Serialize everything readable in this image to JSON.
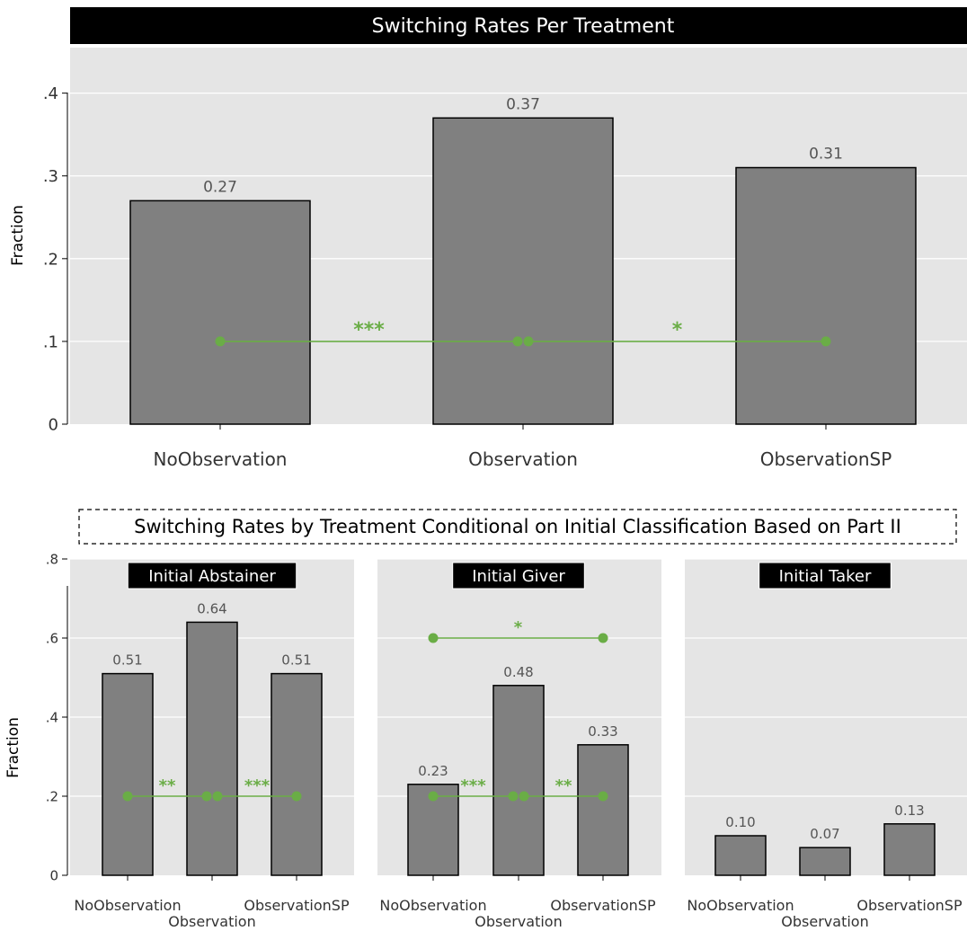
{
  "main_title": "Switching Rates Per Treatment",
  "sub_title": "Switching Rates by Treatment Conditional on Initial Classification Based on Part II",
  "colors": {
    "bar": "#808080",
    "significance": "#6aad46",
    "panel": "#e5e5e5",
    "title_bg": "#000000"
  },
  "chart_data": [
    {
      "type": "bar",
      "title": "Switching Rates Per Treatment",
      "ylabel": "Fraction",
      "ylim": [
        0,
        0.45
      ],
      "yticks": [
        0,
        0.1,
        0.2,
        0.3,
        0.4
      ],
      "ytick_labels": [
        "0",
        ".1",
        ".2",
        ".3",
        ".4"
      ],
      "categories": [
        "NoObservation",
        "Observation",
        "ObservationSP"
      ],
      "values": [
        0.27,
        0.37,
        0.31
      ],
      "value_labels": [
        "0.27",
        "0.37",
        "0.31"
      ],
      "significance": [
        {
          "from": 0,
          "to": 1,
          "y": 0.1,
          "label": "***"
        },
        {
          "from": 1,
          "to": 2,
          "y": 0.1,
          "label": "*"
        }
      ]
    },
    {
      "type": "bar",
      "title": "Initial Abstainer",
      "ylabel": "Fraction",
      "ylim": [
        0,
        0.8
      ],
      "yticks": [
        0,
        0.2,
        0.4,
        0.6,
        0.8
      ],
      "ytick_labels": [
        "0",
        ".2",
        ".4",
        ".6",
        ".8"
      ],
      "categories": [
        "NoObservation",
        "Observation",
        "ObservationSP"
      ],
      "values": [
        0.51,
        0.64,
        0.51
      ],
      "value_labels": [
        "0.51",
        "0.64",
        "0.51"
      ],
      "significance": [
        {
          "from": 0,
          "to": 1,
          "y": 0.2,
          "label": "**"
        },
        {
          "from": 1,
          "to": 2,
          "y": 0.2,
          "label": "***"
        }
      ]
    },
    {
      "type": "bar",
      "title": "Initial Giver",
      "ylim": [
        0,
        0.8
      ],
      "categories": [
        "NoObservation",
        "Observation",
        "ObservationSP"
      ],
      "values": [
        0.23,
        0.48,
        0.33
      ],
      "value_labels": [
        "0.23",
        "0.48",
        "0.33"
      ],
      "significance": [
        {
          "from": 0,
          "to": 1,
          "y": 0.2,
          "label": "***"
        },
        {
          "from": 1,
          "to": 2,
          "y": 0.2,
          "label": "**"
        },
        {
          "from": 0,
          "to": 2,
          "y": 0.6,
          "label": "*"
        }
      ]
    },
    {
      "type": "bar",
      "title": "Initial Taker",
      "ylim": [
        0,
        0.8
      ],
      "categories": [
        "NoObservation",
        "Observation",
        "ObservationSP"
      ],
      "values": [
        0.1,
        0.07,
        0.13
      ],
      "value_labels": [
        "0.10",
        "0.07",
        "0.13"
      ],
      "significance": []
    }
  ]
}
